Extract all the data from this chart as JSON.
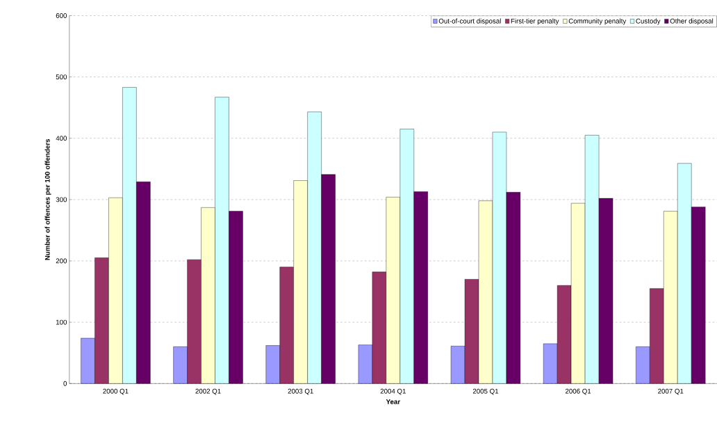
{
  "chart_data": {
    "type": "bar",
    "xlabel": "Year",
    "ylabel": "Number of offences per 100 offenders",
    "categories": [
      "2000 Q1",
      "2002 Q1",
      "2003 Q1",
      "2004 Q1",
      "2005 Q1",
      "2006 Q1",
      "2007 Q1"
    ],
    "series": [
      {
        "name": "Out-of-court disposal",
        "color": "#9999ff",
        "values": [
          74,
          60,
          62,
          63,
          61,
          65,
          60
        ]
      },
      {
        "name": "First-tier penalty",
        "color": "#993366",
        "values": [
          205,
          202,
          190,
          182,
          170,
          160,
          155
        ]
      },
      {
        "name": "Community penalty",
        "color": "#ffffcc",
        "values": [
          303,
          287,
          331,
          304,
          298,
          294,
          281
        ]
      },
      {
        "name": "Custody",
        "color": "#ccffff",
        "values": [
          483,
          467,
          443,
          415,
          410,
          405,
          359
        ]
      },
      {
        "name": "Other disposal",
        "color": "#660066",
        "values": [
          329,
          281,
          341,
          313,
          312,
          302,
          288
        ]
      }
    ],
    "ylim": [
      0,
      600
    ],
    "yticks": [
      0,
      100,
      200,
      300,
      400,
      500,
      600
    ],
    "grid": "y",
    "legend": "top right"
  }
}
